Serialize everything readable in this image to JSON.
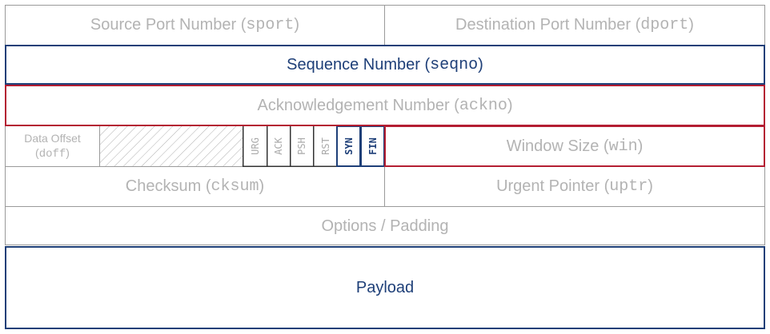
{
  "rows": {
    "sport": {
      "label": "Source Port Number",
      "field": "sport"
    },
    "dport": {
      "label": "Destination Port Number",
      "field": "dport"
    },
    "seqno": {
      "label": "Sequence Number",
      "field": "seqno"
    },
    "ackno": {
      "label": "Acknowledgement Number",
      "field": "ackno"
    },
    "doff": {
      "label": "Data Offset",
      "field": "doff"
    },
    "win": {
      "label": "Window Size",
      "field": "win"
    },
    "cksum": {
      "label": "Checksum",
      "field": "cksum"
    },
    "uptr": {
      "label": "Urgent Pointer",
      "field": "uptr"
    },
    "options": {
      "label": "Options / Padding"
    },
    "payload": {
      "label": "Payload"
    }
  },
  "flags": [
    {
      "label": "URG",
      "highlighted": false
    },
    {
      "label": "ACK",
      "highlighted": false
    },
    {
      "label": "PSH",
      "highlighted": false
    },
    {
      "label": "RST",
      "highlighted": false
    },
    {
      "label": "SYN",
      "highlighted": true
    },
    {
      "label": "FIN",
      "highlighted": true
    }
  ],
  "colors": {
    "grey_text": "#b3b3b3",
    "grey_border": "#9a9a9a",
    "blue": "#1e3f78",
    "red": "#b41e32",
    "hatch": "#b0b0b0"
  }
}
